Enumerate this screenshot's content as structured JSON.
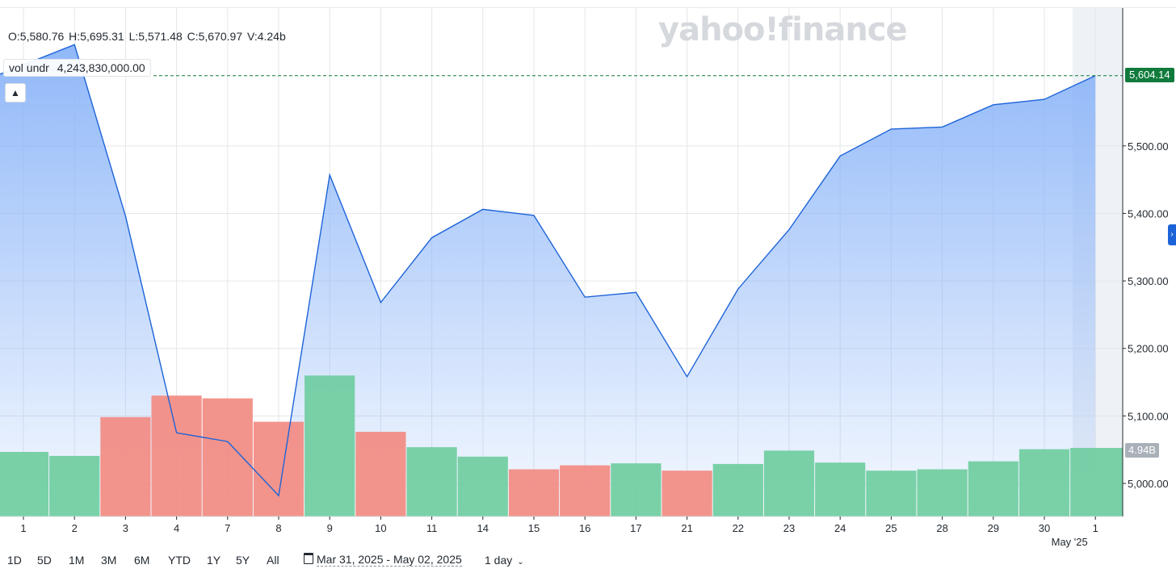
{
  "header": {
    "ohlc": {
      "open": "O:5,580.76",
      "high": "H:5,695.31",
      "low": "L:5,571.48",
      "close": "C:5,670.97",
      "volume": "V:4.24b"
    },
    "volume_tooltip": {
      "label": "vol undr",
      "value": "4,243,830,000.00"
    },
    "watermark": "yahoo!finance"
  },
  "price_tag": "5,604.14",
  "volume_tag": "4.94B",
  "toolbar": {
    "ranges": [
      "1D",
      "5D",
      "1M",
      "3M",
      "6M",
      "YTD",
      "1Y",
      "5Y",
      "All"
    ],
    "date_range": "Mar 31, 2025 - May 02, 2025",
    "interval": "1 day"
  },
  "colors": {
    "line": "#1d63d8",
    "area_top": "#8ab4f8",
    "up_volume": "#6fcd9f",
    "down_volume": "#f28b82",
    "price_tag": "#0f7a3c"
  },
  "chart_data": {
    "type": "area",
    "x": [
      "1",
      "2",
      "3",
      "4",
      "7",
      "8",
      "9",
      "10",
      "11",
      "14",
      "15",
      "16",
      "17",
      "21",
      "22",
      "23",
      "24",
      "25",
      "28",
      "29",
      "30",
      "1"
    ],
    "month_label": "May '25",
    "series": [
      {
        "values": [
          5620,
          5650,
          5396,
          5075,
          5062,
          4982,
          5457,
          5268,
          5364,
          5406,
          5397,
          5276,
          5283,
          5158,
          5288,
          5376,
          5485,
          5525,
          5528,
          5561,
          5569,
          5604
        ]
      }
    ],
    "volume": {
      "values": [
        4.88,
        4.82,
        5.4,
        5.72,
        5.68,
        5.33,
        6.02,
        5.18,
        4.95,
        4.81,
        4.62,
        4.68,
        4.71,
        4.6,
        4.7,
        4.9,
        4.72,
        4.6,
        4.62,
        4.74,
        4.92,
        4.94
      ],
      "direction": [
        "up",
        "up",
        "down",
        "down",
        "down",
        "down",
        "up",
        "down",
        "up",
        "up",
        "down",
        "down",
        "up",
        "down",
        "up",
        "up",
        "up",
        "up",
        "up",
        "up",
        "up",
        "up"
      ]
    },
    "y_ticks": [
      "5,000.00",
      "5,100.00",
      "5,200.00",
      "5,300.00",
      "5,400.00",
      "5,500.00"
    ],
    "y_tick_values": [
      5000,
      5100,
      5200,
      5300,
      5400,
      5500
    ],
    "ylim": [
      4950,
      5700
    ],
    "last_price": 5604.14,
    "grid": true
  }
}
